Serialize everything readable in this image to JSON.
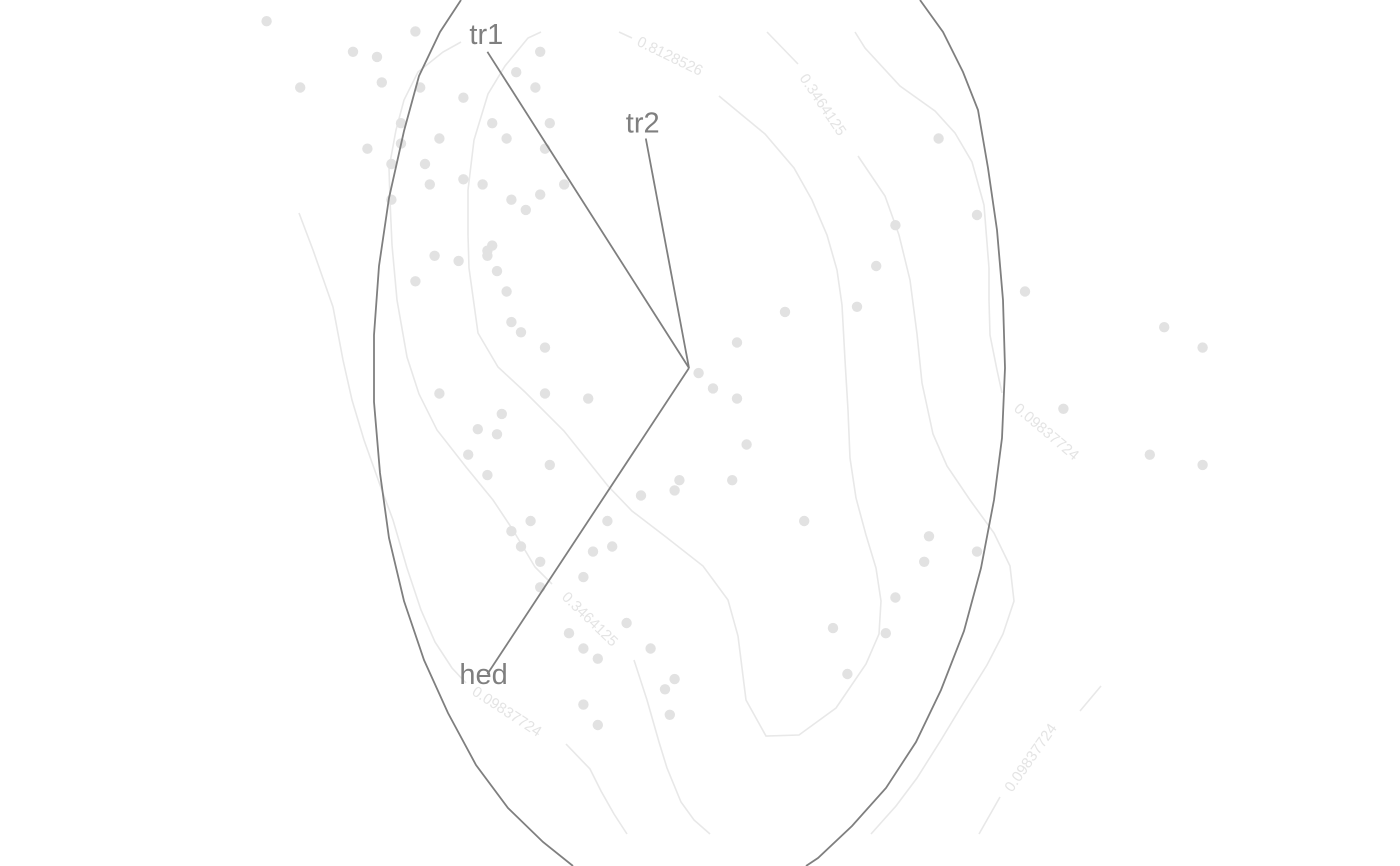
{
  "chart_data": {
    "type": "scatter",
    "title": "",
    "xlabel": "",
    "ylabel": "",
    "xlim": [
      -1.3,
      1.3
    ],
    "ylim": [
      -0.75,
      0.75
    ],
    "grid": false,
    "colors": {
      "points": "#e2e2e2",
      "contours": "#e8e8e8",
      "ellipse": "#7f7f7f",
      "vectors": "#7f7f7f"
    },
    "points": [
      [
        -0.88,
        0.68
      ],
      [
        -0.7,
        0.62
      ],
      [
        -0.81,
        0.55
      ],
      [
        -0.57,
        0.66
      ],
      [
        -0.31,
        0.62
      ],
      [
        -0.65,
        0.61
      ],
      [
        -0.64,
        0.56
      ],
      [
        -0.56,
        0.55
      ],
      [
        -0.6,
        0.48
      ],
      [
        -0.6,
        0.44
      ],
      [
        -0.67,
        0.43
      ],
      [
        -0.62,
        0.4
      ],
      [
        -0.55,
        0.4
      ],
      [
        -0.62,
        0.33
      ],
      [
        -0.52,
        0.45
      ],
      [
        -0.54,
        0.36
      ],
      [
        -0.47,
        0.37
      ],
      [
        -0.41,
        0.48
      ],
      [
        -0.47,
        0.53
      ],
      [
        -0.38,
        0.45
      ],
      [
        -0.43,
        0.36
      ],
      [
        -0.37,
        0.33
      ],
      [
        -0.31,
        0.34
      ],
      [
        -0.34,
        0.31
      ],
      [
        -0.32,
        0.55
      ],
      [
        -0.36,
        0.58
      ],
      [
        -0.29,
        0.48
      ],
      [
        -0.3,
        0.43
      ],
      [
        -0.26,
        0.36
      ],
      [
        -0.41,
        0.24
      ],
      [
        -0.42,
        0.23
      ],
      [
        -0.42,
        0.22
      ],
      [
        -0.48,
        0.21
      ],
      [
        -0.53,
        0.22
      ],
      [
        -0.57,
        0.17
      ],
      [
        -0.4,
        0.19
      ],
      [
        -0.38,
        0.15
      ],
      [
        -0.37,
        0.09
      ],
      [
        -0.35,
        0.07
      ],
      [
        -0.3,
        0.04
      ],
      [
        -0.3,
        -0.05
      ],
      [
        -0.39,
        -0.09
      ],
      [
        -0.44,
        -0.12
      ],
      [
        -0.4,
        -0.13
      ],
      [
        -0.46,
        -0.17
      ],
      [
        -0.52,
        -0.05
      ],
      [
        -0.42,
        -0.21
      ],
      [
        -0.29,
        -0.19
      ],
      [
        -0.21,
        -0.06
      ],
      [
        -0.33,
        -0.3
      ],
      [
        -0.37,
        -0.32
      ],
      [
        -0.35,
        -0.35
      ],
      [
        -0.31,
        -0.38
      ],
      [
        -0.31,
        -0.43
      ],
      [
        -0.25,
        -0.52
      ],
      [
        -0.22,
        -0.55
      ],
      [
        -0.17,
        -0.3
      ],
      [
        -0.2,
        -0.36
      ],
      [
        -0.22,
        -0.41
      ],
      [
        -0.08,
        -0.55
      ],
      [
        -0.03,
        -0.61
      ],
      [
        -0.05,
        -0.63
      ],
      [
        -0.04,
        -0.68
      ],
      [
        -0.19,
        -0.7
      ],
      [
        -0.22,
        -0.66
      ],
      [
        -0.19,
        -0.57
      ],
      [
        -0.13,
        -0.5
      ],
      [
        -0.16,
        -0.35
      ],
      [
        -0.1,
        -0.25
      ],
      [
        -0.03,
        -0.24
      ],
      [
        -0.02,
        -0.22
      ],
      [
        0.09,
        -0.22
      ],
      [
        0.12,
        -0.15
      ],
      [
        0.1,
        -0.06
      ],
      [
        0.05,
        -0.04
      ],
      [
        0.02,
        -0.01
      ],
      [
        0.1,
        0.05
      ],
      [
        0.2,
        0.11
      ],
      [
        0.35,
        0.12
      ],
      [
        0.39,
        0.2
      ],
      [
        0.43,
        0.28
      ],
      [
        0.52,
        0.45
      ],
      [
        0.6,
        0.3
      ],
      [
        0.7,
        0.15
      ],
      [
        0.78,
        -0.08
      ],
      [
        1.07,
        -0.19
      ],
      [
        1.07,
        0.04
      ],
      [
        0.99,
        0.08
      ],
      [
        0.96,
        -0.17
      ],
      [
        0.6,
        -0.36
      ],
      [
        0.5,
        -0.33
      ],
      [
        0.49,
        -0.38
      ],
      [
        0.43,
        -0.45
      ],
      [
        0.41,
        -0.52
      ],
      [
        0.33,
        -0.6
      ],
      [
        0.3,
        -0.51
      ],
      [
        0.24,
        -0.3
      ]
    ],
    "contours": [
      {
        "label": "0.8128526",
        "level": 0.8128526
      },
      {
        "label": "0.3464125",
        "level": 0.3464125
      },
      {
        "label": "0.3464125",
        "level": 0.3464125
      },
      {
        "label": "0.09837724",
        "level": 0.09837724
      },
      {
        "label": "0.09837724",
        "level": 0.09837724
      },
      {
        "label": "0.09837724",
        "level": 0.09837724
      }
    ],
    "ellipse": {
      "center": [
        0.0,
        0.0
      ],
      "radius_x": 0.62,
      "radius_y": 0.87
    },
    "vectors": [
      {
        "label": "tr1",
        "from": [
          0.0,
          0.0
        ],
        "to": [
          -0.42,
          0.62
        ]
      },
      {
        "label": "tr2",
        "from": [
          0.0,
          0.0
        ],
        "to": [
          -0.09,
          0.45
        ]
      },
      {
        "label": "hed",
        "from": [
          0.0,
          0.0
        ],
        "to": [
          -0.42,
          -0.6
        ]
      }
    ]
  }
}
